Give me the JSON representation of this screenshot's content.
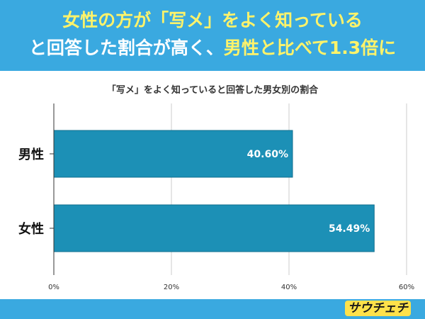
{
  "headline": {
    "line1": "女性の方が「写メ」をよく知っている",
    "line2_part1": "と回答した割合が高く、",
    "line2_part2": "男性と比べて1.3倍に"
  },
  "footer": {
    "logo_text": "サウチェチ"
  },
  "colors": {
    "header_bg": "#3aa9e0",
    "bar": "#1c90b6",
    "highlight": "#fff36a"
  },
  "chart_data": {
    "type": "bar",
    "orientation": "horizontal",
    "title": "「写メ」をよく知っていると回答した男女別の割合",
    "categories": [
      "男性",
      "女性"
    ],
    "values": [
      40.6,
      54.49
    ],
    "value_labels": [
      "40.60%",
      "54.49%"
    ],
    "xlim": [
      0,
      60
    ],
    "xticks": [
      0,
      20,
      40,
      60
    ],
    "xtick_labels": [
      "0%",
      "20%",
      "40%",
      "60%"
    ],
    "grid": true
  }
}
